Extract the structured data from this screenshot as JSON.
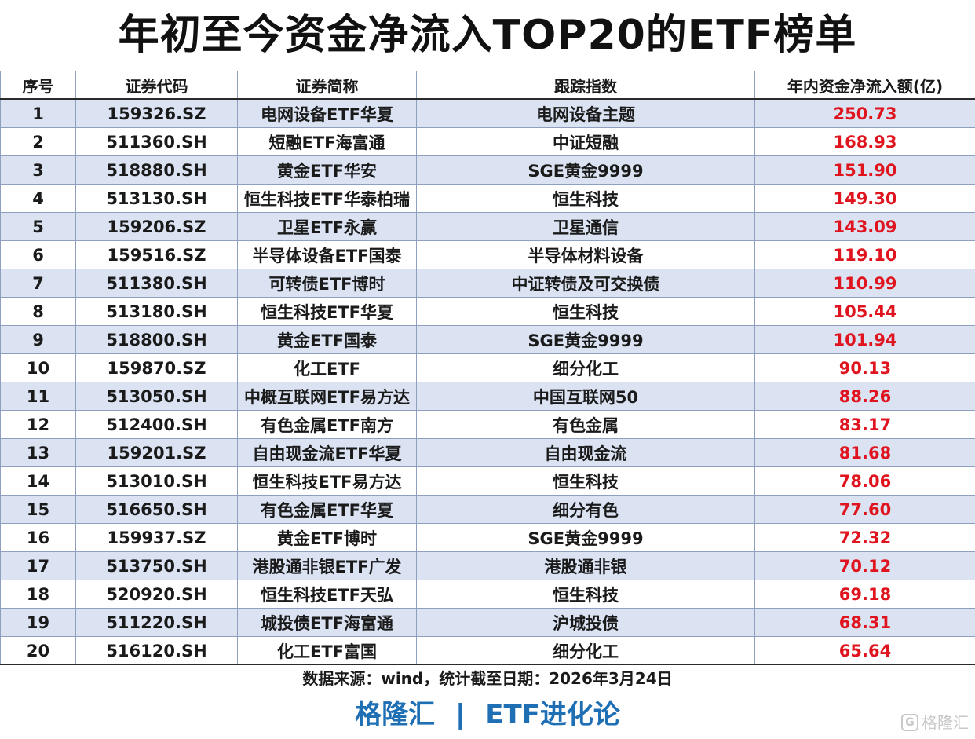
{
  "title": "年初至今资金净流入TOP20的ETF榜单",
  "source_note": "数据来源：wind，统计截至日期：2026年3月24日",
  "brand": {
    "left": "格隆汇",
    "separator": "|",
    "right": "ETF进化论"
  },
  "watermark": {
    "icon": "gelonghui-logo-icon",
    "icon_glyph": "G",
    "text": "格隆汇"
  },
  "colors": {
    "value_red": "#e0141e",
    "stripe": "#dbe3f3",
    "brand_blue": "#1f6fb5"
  },
  "chart_data": {
    "type": "table",
    "title": "年初至今资金净流入TOP20的ETF榜单",
    "columns": [
      "序号",
      "证券代码",
      "证券简称",
      "跟踪指数",
      "年内资金净流入额(亿)"
    ],
    "rows": [
      [
        "1",
        "159326.SZ",
        "电网设备ETF华夏",
        "电网设备主题",
        "250.73"
      ],
      [
        "2",
        "511360.SH",
        "短融ETF海富通",
        "中证短融",
        "168.93"
      ],
      [
        "3",
        "518880.SH",
        "黄金ETF华安",
        "SGE黄金9999",
        "151.90"
      ],
      [
        "4",
        "513130.SH",
        "恒生科技ETF华泰柏瑞",
        "恒生科技",
        "149.30"
      ],
      [
        "5",
        "159206.SZ",
        "卫星ETF永赢",
        "卫星通信",
        "143.09"
      ],
      [
        "6",
        "159516.SZ",
        "半导体设备ETF国泰",
        "半导体材料设备",
        "119.10"
      ],
      [
        "7",
        "511380.SH",
        "可转债ETF博时",
        "中证转债及可交换债",
        "110.99"
      ],
      [
        "8",
        "513180.SH",
        "恒生科技ETF华夏",
        "恒生科技",
        "105.44"
      ],
      [
        "9",
        "518800.SH",
        "黄金ETF国泰",
        "SGE黄金9999",
        "101.94"
      ],
      [
        "10",
        "159870.SZ",
        "化工ETF",
        "细分化工",
        "90.13"
      ],
      [
        "11",
        "513050.SH",
        "中概互联网ETF易方达",
        "中国互联网50",
        "88.26"
      ],
      [
        "12",
        "512400.SH",
        "有色金属ETF南方",
        "有色金属",
        "83.17"
      ],
      [
        "13",
        "159201.SZ",
        "自由现金流ETF华夏",
        "自由现金流",
        "81.68"
      ],
      [
        "14",
        "513010.SH",
        "恒生科技ETF易方达",
        "恒生科技",
        "78.06"
      ],
      [
        "15",
        "516650.SH",
        "有色金属ETF华夏",
        "细分有色",
        "77.60"
      ],
      [
        "16",
        "159937.SZ",
        "黄金ETF博时",
        "SGE黄金9999",
        "72.32"
      ],
      [
        "17",
        "513750.SH",
        "港股通非银ETF广发",
        "港股通非银",
        "70.12"
      ],
      [
        "18",
        "520920.SH",
        "恒生科技ETF天弘",
        "恒生科技",
        "69.18"
      ],
      [
        "19",
        "511220.SH",
        "城投债ETF海富通",
        "沪城投债",
        "68.31"
      ],
      [
        "20",
        "516120.SH",
        "化工ETF富国",
        "细分化工",
        "65.64"
      ]
    ]
  }
}
